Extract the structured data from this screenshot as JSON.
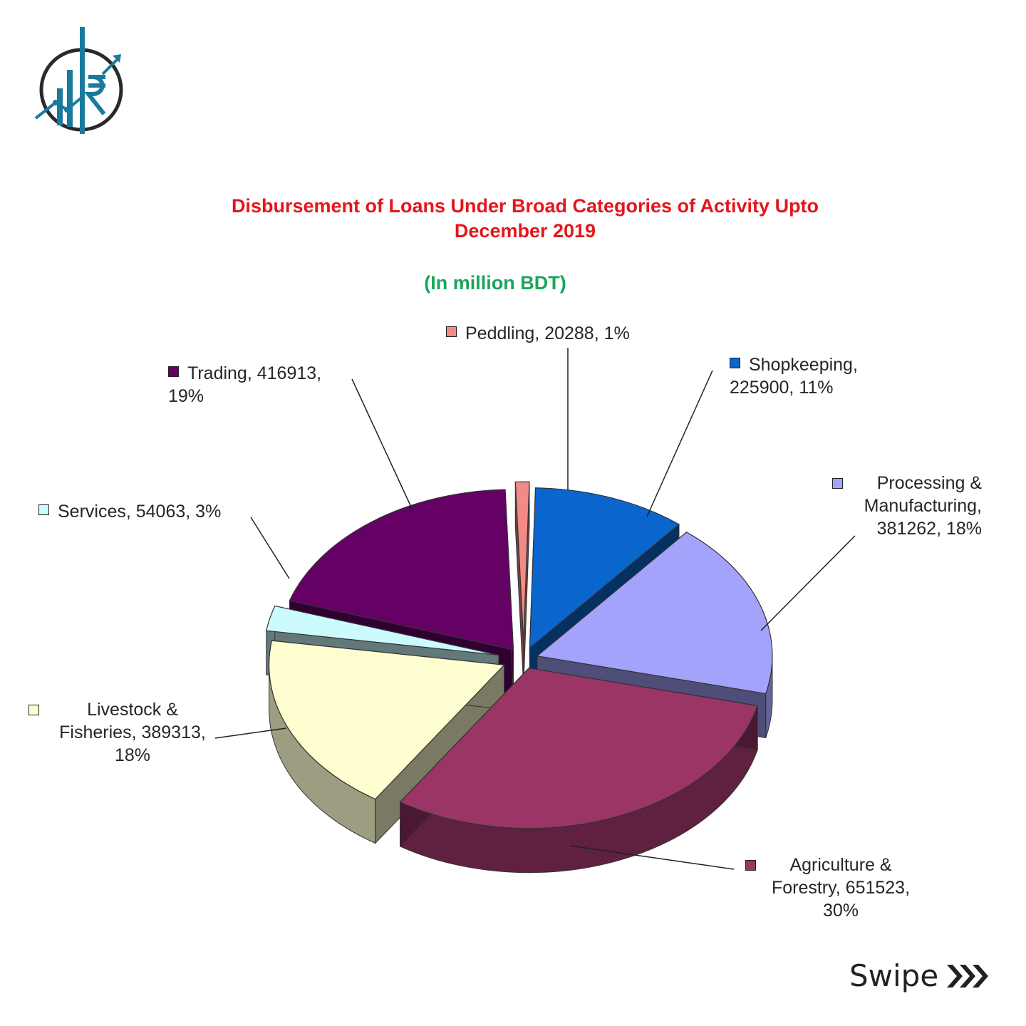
{
  "chart_data": {
    "type": "pie",
    "title": "Disbursement of Loans Under Broad Categories of Activity Upto December 2019",
    "title_lines": [
      "Disbursement of Loans Under Broad Categories of Activity Upto",
      "December 2019"
    ],
    "subtitle": "(In million BDT)",
    "labels_style": "callout labels with leader lines",
    "slices": [
      {
        "name": "Peddling",
        "value": 20288,
        "percent": "1%",
        "color": "#f28b86",
        "label_lines": [
          "Peddling, 20288, 1%"
        ]
      },
      {
        "name": "Shopkeeping",
        "value": 225900,
        "percent": "11%",
        "color": "#0a66cc",
        "label_lines": [
          "Shopkeeping,",
          "225900, 11%"
        ]
      },
      {
        "name": "Processing & Manufacturing",
        "value": 381262,
        "percent": "18%",
        "color": "#a3a3fb",
        "label_lines": [
          "Processing &",
          "Manufacturing,",
          "381262, 18%"
        ]
      },
      {
        "name": "Agriculture & Forestry",
        "value": 651523,
        "percent": "30%",
        "color": "#9a3566",
        "label_lines": [
          "Agriculture &",
          "Forestry, 651523,",
          "30%"
        ]
      },
      {
        "name": "Livestock & Fisheries",
        "value": 389313,
        "percent": "18%",
        "color": "#fefed0",
        "label_lines": [
          "Livestock &",
          "Fisheries, 389313,",
          "18%"
        ]
      },
      {
        "name": "Services",
        "value": 54063,
        "percent": "3%",
        "color": "#ccfbfd",
        "label_lines": [
          "Services, 54063, 3%"
        ]
      },
      {
        "name": "Trading",
        "value": 416913,
        "percent": "19%",
        "color": "#650064",
        "label_lines": [
          "Trading, 416913,",
          "19%"
        ]
      }
    ]
  },
  "footer": {
    "swipe_label": "Swipe",
    "swipe_icon": "triple-chevron-right-icon"
  },
  "brand": {
    "logo_icon": "rupee-growth-chart-logo",
    "colors": {
      "teal": "#1a7a9c",
      "dark": "#2a2a2a"
    }
  }
}
